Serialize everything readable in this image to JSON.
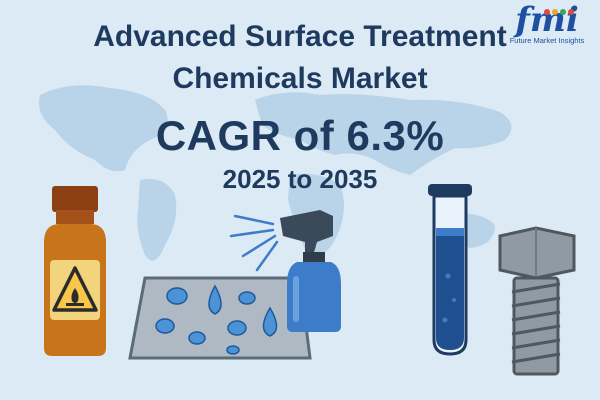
{
  "header": {
    "title_line1": "Advanced Surface Treatment",
    "title_line2": "Chemicals Market",
    "cagr": "CAGR of 6.3%",
    "years": "2025 to 2035"
  },
  "logo": {
    "mark": "fmi",
    "tagline": "Future Market Insights",
    "dot_colors": [
      "#e0483c",
      "#f2a31f",
      "#3aa457",
      "#e0483c"
    ]
  },
  "colors": {
    "background": "#dbeaf4",
    "map": "#b9d3e8",
    "title": "#1f3a5f",
    "bottle": "#c7741a",
    "spray": "#3d7cc9",
    "droplet": "#4b93d6",
    "tube_liquid": "#1f4f8f",
    "bolt": "#8f9aa3"
  },
  "illustrations": [
    "hazard-bottle-icon",
    "droplet-plate-icon",
    "spray-bottle-icon",
    "test-tube-icon",
    "bolt-icon"
  ]
}
